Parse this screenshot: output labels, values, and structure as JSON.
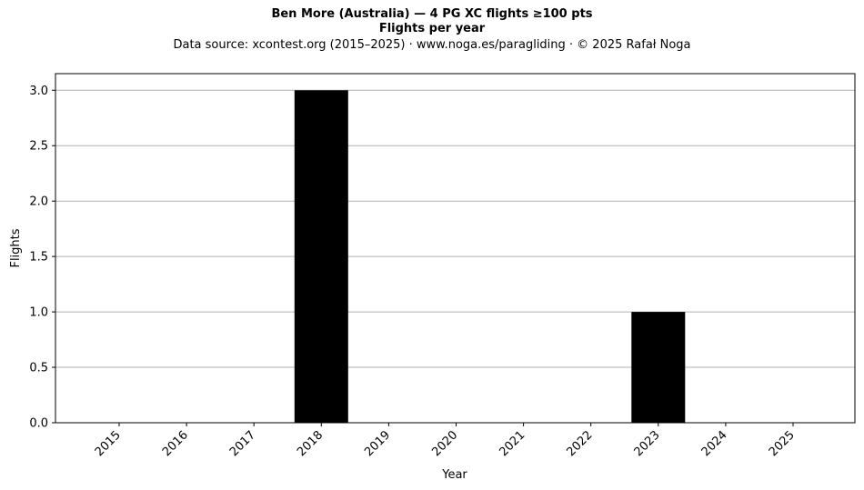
{
  "chart_data": {
    "type": "bar",
    "title": "Ben More (Australia)  —  4 PG XC flights ≥100 pts",
    "subtitle": "Flights per year",
    "source": "Data source: xcontest.org (2015–2025)  ·  www.noga.es/paragliding  ·  © 2025 Rafał Noga",
    "xlabel": "Year",
    "ylabel": "Flights",
    "categories": [
      "2015",
      "2016",
      "2017",
      "2018",
      "2019",
      "2020",
      "2021",
      "2022",
      "2023",
      "2024",
      "2025"
    ],
    "values": [
      0,
      0,
      0,
      3,
      0,
      0,
      0,
      0,
      1,
      0,
      0
    ],
    "ylim": [
      0,
      3.15
    ],
    "yticks": [
      "0.0",
      "0.5",
      "1.0",
      "1.5",
      "2.0",
      "2.5",
      "3.0"
    ],
    "grid": "y",
    "bar_color": "#000000"
  }
}
